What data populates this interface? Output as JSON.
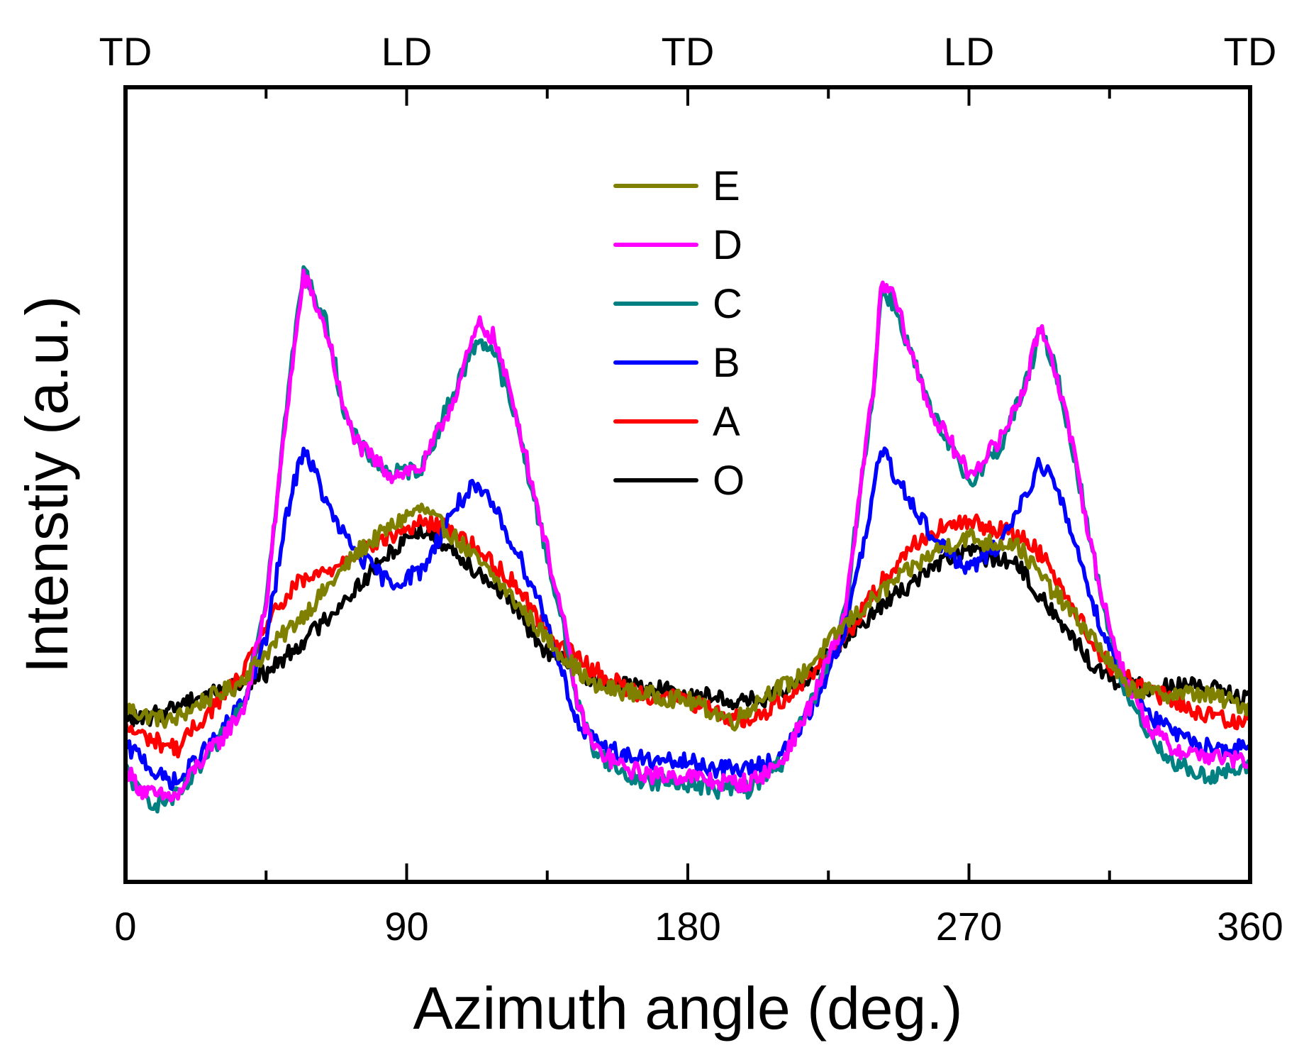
{
  "chart_data": {
    "type": "line",
    "xlabel": "Azimuth angle (deg.)",
    "ylabel": "Intenstiy (a.u.)",
    "xlim": [
      0,
      360
    ],
    "ylim": [
      0,
      100
    ],
    "x_ticks": [
      "0",
      "90",
      "180",
      "270",
      "360"
    ],
    "top_labels": [
      "TD",
      "LD",
      "TD",
      "LD",
      "TD"
    ],
    "legend": {
      "position": "top-center",
      "entries": [
        "E",
        "D",
        "C",
        "B",
        "A",
        "O"
      ]
    },
    "series": [
      {
        "name": "E",
        "color": "#808000",
        "points": [
          [
            0,
            20
          ],
          [
            5,
            19
          ],
          [
            15,
            18
          ],
          [
            25,
            21
          ],
          [
            35,
            23
          ],
          [
            45,
            28
          ],
          [
            60,
            35
          ],
          [
            75,
            43
          ],
          [
            90,
            48
          ],
          [
            95,
            49
          ],
          [
            105,
            45
          ],
          [
            120,
            38
          ],
          [
            135,
            30
          ],
          [
            150,
            23
          ],
          [
            165,
            22
          ],
          [
            180,
            21
          ],
          [
            195,
            18
          ],
          [
            205,
            22
          ],
          [
            215,
            24
          ],
          [
            230,
            32
          ],
          [
            245,
            38
          ],
          [
            260,
            43
          ],
          [
            270,
            45
          ],
          [
            275,
            44
          ],
          [
            285,
            44
          ],
          [
            295,
            38
          ],
          [
            310,
            30
          ],
          [
            320,
            23
          ],
          [
            330,
            22
          ],
          [
            345,
            22
          ],
          [
            360,
            20
          ]
        ]
      },
      {
        "name": "D",
        "color": "#ff00ff",
        "points": [
          [
            0,
            11
          ],
          [
            5,
            8
          ],
          [
            10,
            7
          ],
          [
            17,
            7
          ],
          [
            22,
            11
          ],
          [
            30,
            15
          ],
          [
            38,
            20
          ],
          [
            45,
            35
          ],
          [
            52,
            65
          ],
          [
            57,
            83
          ],
          [
            60,
            80
          ],
          [
            65,
            74
          ],
          [
            70,
            63
          ],
          [
            75,
            58
          ],
          [
            85,
            54
          ],
          [
            95,
            55
          ],
          [
            105,
            65
          ],
          [
            113,
            76
          ],
          [
            118,
            74
          ],
          [
            125,
            63
          ],
          [
            133,
            47
          ],
          [
            140,
            33
          ],
          [
            145,
            20
          ],
          [
            150,
            14
          ],
          [
            160,
            11
          ],
          [
            170,
            10
          ],
          [
            180,
            10
          ],
          [
            190,
            9
          ],
          [
            200,
            9
          ],
          [
            210,
            12
          ],
          [
            220,
            21
          ],
          [
            230,
            33
          ],
          [
            237,
            58
          ],
          [
            240,
            69
          ],
          [
            242,
            82
          ],
          [
            246,
            80
          ],
          [
            252,
            71
          ],
          [
            258,
            63
          ],
          [
            265,
            58
          ],
          [
            270,
            54
          ],
          [
            280,
            59
          ],
          [
            288,
            67
          ],
          [
            293,
            76
          ],
          [
            298,
            69
          ],
          [
            304,
            56
          ],
          [
            312,
            37
          ],
          [
            320,
            24
          ],
          [
            328,
            17
          ],
          [
            335,
            14
          ],
          [
            345,
            13
          ],
          [
            360,
            12
          ]
        ]
      },
      {
        "name": "C",
        "color": "#008080",
        "points": [
          [
            0,
            11
          ],
          [
            5,
            7
          ],
          [
            10,
            6
          ],
          [
            17,
            7
          ],
          [
            22,
            10
          ],
          [
            30,
            15
          ],
          [
            38,
            21
          ],
          [
            45,
            36
          ],
          [
            52,
            66
          ],
          [
            57,
            84
          ],
          [
            60,
            81
          ],
          [
            65,
            75
          ],
          [
            70,
            63
          ],
          [
            75,
            58
          ],
          [
            85,
            54
          ],
          [
            95,
            55
          ],
          [
            105,
            66
          ],
          [
            113,
            74
          ],
          [
            118,
            72
          ],
          [
            125,
            62
          ],
          [
            133,
            46
          ],
          [
            140,
            32
          ],
          [
            145,
            20
          ],
          [
            150,
            14
          ],
          [
            160,
            10
          ],
          [
            170,
            9
          ],
          [
            180,
            9
          ],
          [
            190,
            8
          ],
          [
            200,
            8
          ],
          [
            210,
            12
          ],
          [
            220,
            21
          ],
          [
            230,
            33
          ],
          [
            237,
            58
          ],
          [
            240,
            69
          ],
          [
            242,
            81
          ],
          [
            246,
            79
          ],
          [
            252,
            71
          ],
          [
            258,
            63
          ],
          [
            265,
            57
          ],
          [
            270,
            53
          ],
          [
            280,
            58
          ],
          [
            288,
            67
          ],
          [
            293,
            75
          ],
          [
            298,
            69
          ],
          [
            304,
            56
          ],
          [
            312,
            37
          ],
          [
            320,
            22
          ],
          [
            328,
            16
          ],
          [
            335,
            12
          ],
          [
            345,
            10
          ],
          [
            360,
            11
          ]
        ]
      },
      {
        "name": "B",
        "color": "#0000ff",
        "points": [
          [
            0,
            14
          ],
          [
            5,
            13
          ],
          [
            10,
            10
          ],
          [
            17,
            9
          ],
          [
            22,
            12
          ],
          [
            30,
            16
          ],
          [
            38,
            21
          ],
          [
            45,
            30
          ],
          [
            52,
            49
          ],
          [
            57,
            58
          ],
          [
            60,
            55
          ],
          [
            65,
            49
          ],
          [
            70,
            45
          ],
          [
            75,
            42
          ],
          [
            85,
            38
          ],
          [
            95,
            40
          ],
          [
            105,
            49
          ],
          [
            111,
            52
          ],
          [
            117,
            50
          ],
          [
            125,
            43
          ],
          [
            133,
            35
          ],
          [
            140,
            25
          ],
          [
            145,
            17
          ],
          [
            150,
            15
          ],
          [
            160,
            13
          ],
          [
            170,
            12
          ],
          [
            180,
            12
          ],
          [
            190,
            11
          ],
          [
            200,
            11
          ],
          [
            210,
            13
          ],
          [
            220,
            20
          ],
          [
            230,
            31
          ],
          [
            237,
            45
          ],
          [
            240,
            53
          ],
          [
            242,
            58
          ],
          [
            246,
            54
          ],
          [
            252,
            50
          ],
          [
            258,
            45
          ],
          [
            265,
            42
          ],
          [
            270,
            40
          ],
          [
            280,
            44
          ],
          [
            288,
            51
          ],
          [
            293,
            56
          ],
          [
            298,
            52
          ],
          [
            304,
            44
          ],
          [
            312,
            32
          ],
          [
            320,
            24
          ],
          [
            330,
            18
          ],
          [
            340,
            15
          ],
          [
            350,
            14
          ],
          [
            360,
            14
          ]
        ]
      },
      {
        "name": "A",
        "color": "#ff0000",
        "points": [
          [
            0,
            17
          ],
          [
            5,
            16
          ],
          [
            10,
            15
          ],
          [
            17,
            14
          ],
          [
            22,
            17
          ],
          [
            30,
            21
          ],
          [
            38,
            25
          ],
          [
            45,
            32
          ],
          [
            55,
            38
          ],
          [
            65,
            40
          ],
          [
            75,
            43
          ],
          [
            85,
            45
          ],
          [
            95,
            47
          ],
          [
            105,
            46
          ],
          [
            115,
            42
          ],
          [
            125,
            38
          ],
          [
            135,
            31
          ],
          [
            145,
            27
          ],
          [
            155,
            24
          ],
          [
            165,
            22
          ],
          [
            180,
            21
          ],
          [
            190,
            19
          ],
          [
            200,
            18
          ],
          [
            210,
            21
          ],
          [
            220,
            25
          ],
          [
            230,
            30
          ],
          [
            240,
            37
          ],
          [
            250,
            43
          ],
          [
            260,
            46
          ],
          [
            270,
            47
          ],
          [
            280,
            46
          ],
          [
            290,
            44
          ],
          [
            297,
            40
          ],
          [
            305,
            33
          ],
          [
            315,
            26
          ],
          [
            325,
            23
          ],
          [
            335,
            21
          ],
          [
            345,
            19
          ],
          [
            355,
            18
          ],
          [
            360,
            19
          ]
        ]
      },
      {
        "name": "O",
        "color": "#000000",
        "points": [
          [
            0,
            19
          ],
          [
            5,
            18
          ],
          [
            15,
            20
          ],
          [
            25,
            22
          ],
          [
            35,
            23
          ],
          [
            45,
            25
          ],
          [
            60,
            31
          ],
          [
            75,
            38
          ],
          [
            90,
            45
          ],
          [
            95,
            46
          ],
          [
            105,
            43
          ],
          [
            120,
            37
          ],
          [
            135,
            28
          ],
          [
            150,
            24
          ],
          [
            165,
            23
          ],
          [
            180,
            22
          ],
          [
            195,
            21
          ],
          [
            205,
            21
          ],
          [
            215,
            23
          ],
          [
            230,
            30
          ],
          [
            245,
            36
          ],
          [
            260,
            41
          ],
          [
            270,
            43
          ],
          [
            275,
            42
          ],
          [
            285,
            41
          ],
          [
            295,
            35
          ],
          [
            310,
            26
          ],
          [
            320,
            23
          ],
          [
            330,
            23
          ],
          [
            345,
            23
          ],
          [
            360,
            21
          ]
        ]
      }
    ]
  }
}
